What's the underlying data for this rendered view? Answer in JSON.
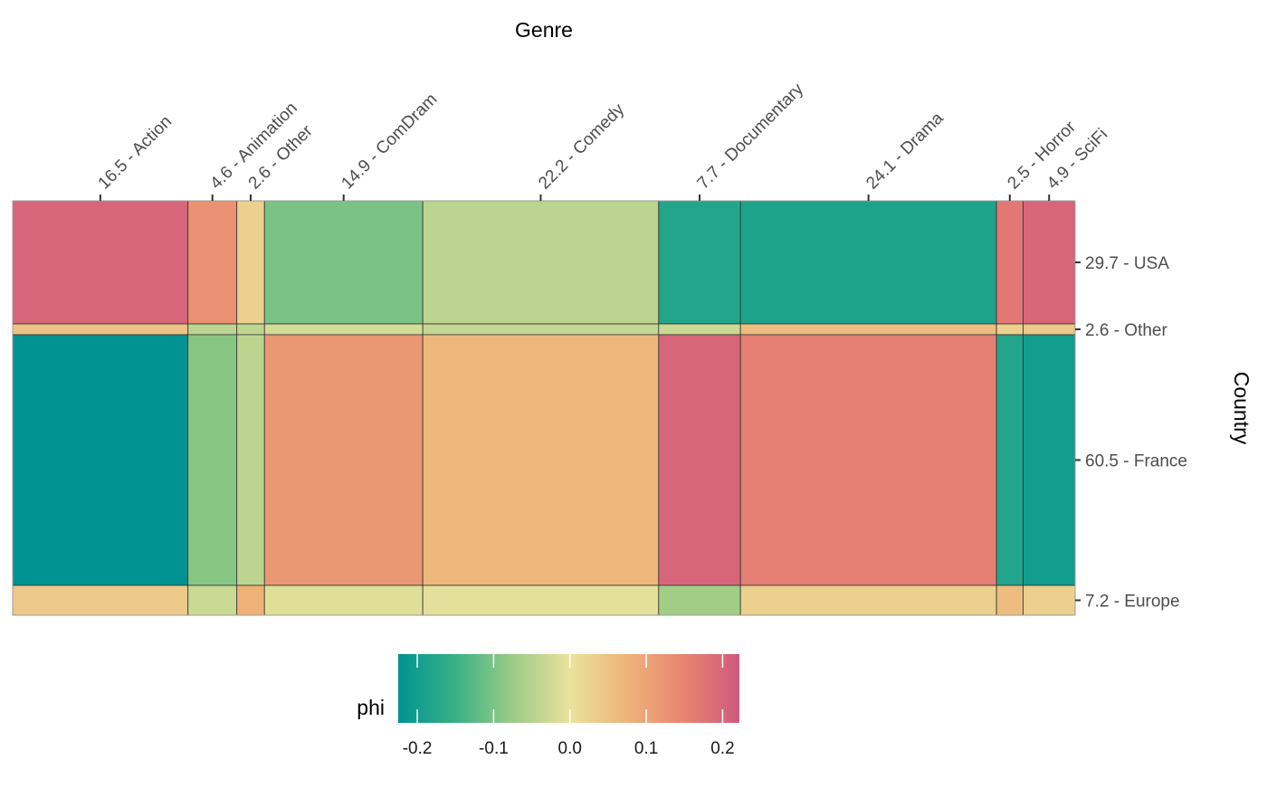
{
  "chart_data": {
    "type": "heatmap",
    "subtype": "mosaic",
    "x_title": "Genre",
    "y_title": "Country",
    "legend_title": "phi",
    "legend_placement": "bottom",
    "legend_ticks": [
      "-0.2",
      "-0.1",
      "0.0",
      "0.1",
      "0.2"
    ],
    "legend_tick_values": [
      -0.2,
      -0.1,
      0.0,
      0.1,
      0.2
    ],
    "color_range": [
      -0.225,
      0.222
    ],
    "color_stops": [
      {
        "value": -0.225,
        "color": "#009392"
      },
      {
        "value": -0.15,
        "color": "#39b185"
      },
      {
        "value": -0.075,
        "color": "#9ccb86"
      },
      {
        "value": 0.0,
        "color": "#e9e29c"
      },
      {
        "value": 0.075,
        "color": "#eeb479"
      },
      {
        "value": 0.15,
        "color": "#e88471"
      },
      {
        "value": 0.222,
        "color": "#cf597e"
      }
    ],
    "columns": [
      {
        "label": "16.5 - Action",
        "percent": 16.5
      },
      {
        "label": "4.6 - Animation",
        "percent": 4.6
      },
      {
        "label": "2.6 - Other",
        "percent": 2.6
      },
      {
        "label": "14.9 - ComDram",
        "percent": 14.9
      },
      {
        "label": "22.2 - Comedy",
        "percent": 22.2
      },
      {
        "label": "7.7 - Documentary",
        "percent": 7.7
      },
      {
        "label": "24.1 - Drama",
        "percent": 24.1
      },
      {
        "label": "2.5 - Horror",
        "percent": 2.5
      },
      {
        "label": "4.9 - SciFi",
        "percent": 4.9
      }
    ],
    "rows": [
      {
        "label": "29.7 - USA",
        "percent": 29.7,
        "phi": [
          0.2,
          0.13,
          0.03,
          -0.1,
          -0.045,
          -0.18,
          -0.185,
          0.17,
          0.2
        ]
      },
      {
        "label": "2.6 - Other",
        "percent": 2.6,
        "phi": [
          0.05,
          -0.045,
          -0.04,
          -0.02,
          -0.035,
          -0.03,
          0.06,
          0.03,
          0.04
        ]
      },
      {
        "label": "60.5 - France",
        "percent": 60.5,
        "phi": [
          -0.225,
          -0.09,
          -0.045,
          0.12,
          0.07,
          0.2,
          0.16,
          -0.18,
          -0.2
        ]
      },
      {
        "label": "7.2 - Europe",
        "percent": 7.2,
        "phi": [
          0.04,
          -0.03,
          0.08,
          -0.01,
          -0.005,
          -0.07,
          0.03,
          0.06,
          0.03
        ]
      }
    ]
  }
}
